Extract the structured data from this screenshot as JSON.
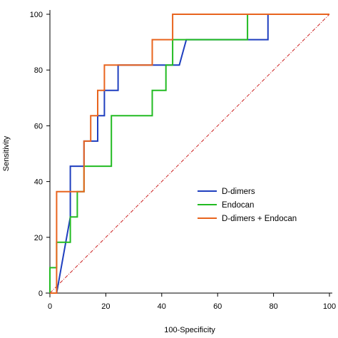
{
  "chart_data": {
    "type": "line",
    "xlabel": "100-Specificity",
    "ylabel": "Sensitivity",
    "xlim": [
      0,
      100
    ],
    "ylim": [
      0,
      100
    ],
    "xticks": [
      "0",
      "20",
      "40",
      "60",
      "80",
      "100"
    ],
    "yticks": [
      "0",
      "20",
      "40",
      "60",
      "80",
      "100"
    ],
    "legend_position": "bottom-right",
    "reference_line": {
      "from": [
        0,
        0
      ],
      "to": [
        100,
        100
      ],
      "color": "#cc2222",
      "style": "dash-dot"
    },
    "series": [
      {
        "name": "D-dimers",
        "color": "#1f3fbf",
        "points": [
          [
            0,
            0
          ],
          [
            2.4,
            0
          ],
          [
            7.3,
            27.3
          ],
          [
            7.3,
            45.5
          ],
          [
            12.2,
            45.5
          ],
          [
            12.2,
            54.5
          ],
          [
            17.1,
            54.5
          ],
          [
            17.1,
            63.6
          ],
          [
            19.5,
            63.6
          ],
          [
            19.5,
            72.7
          ],
          [
            24.4,
            72.7
          ],
          [
            24.4,
            81.8
          ],
          [
            46.3,
            81.8
          ],
          [
            48.8,
            90.9
          ],
          [
            78,
            90.9
          ],
          [
            78,
            100
          ],
          [
            100,
            100
          ]
        ]
      },
      {
        "name": "Endocan",
        "color": "#22bb22",
        "points": [
          [
            0,
            0
          ],
          [
            0,
            9.1
          ],
          [
            2.4,
            9.1
          ],
          [
            2.4,
            18.2
          ],
          [
            7.3,
            18.2
          ],
          [
            7.3,
            27.3
          ],
          [
            9.8,
            27.3
          ],
          [
            9.8,
            36.4
          ],
          [
            12.2,
            36.4
          ],
          [
            12.2,
            45.5
          ],
          [
            22,
            45.5
          ],
          [
            22,
            63.6
          ],
          [
            36.6,
            63.6
          ],
          [
            36.6,
            72.7
          ],
          [
            41.5,
            72.7
          ],
          [
            41.5,
            81.8
          ],
          [
            43.9,
            81.8
          ],
          [
            43.9,
            90.9
          ],
          [
            70.7,
            90.9
          ],
          [
            70.7,
            100
          ],
          [
            100,
            100
          ]
        ]
      },
      {
        "name": "D-dimers + Endocan",
        "color": "#e8641e",
        "points": [
          [
            0,
            0
          ],
          [
            2.4,
            0
          ],
          [
            2.4,
            36.4
          ],
          [
            12.2,
            36.4
          ],
          [
            12.2,
            54.5
          ],
          [
            14.6,
            54.5
          ],
          [
            14.6,
            63.6
          ],
          [
            17.1,
            63.6
          ],
          [
            17.1,
            72.7
          ],
          [
            19.5,
            72.7
          ],
          [
            19.5,
            81.8
          ],
          [
            36.6,
            81.8
          ],
          [
            36.6,
            90.9
          ],
          [
            43.9,
            90.9
          ],
          [
            43.9,
            100
          ],
          [
            100,
            100
          ]
        ]
      }
    ]
  }
}
